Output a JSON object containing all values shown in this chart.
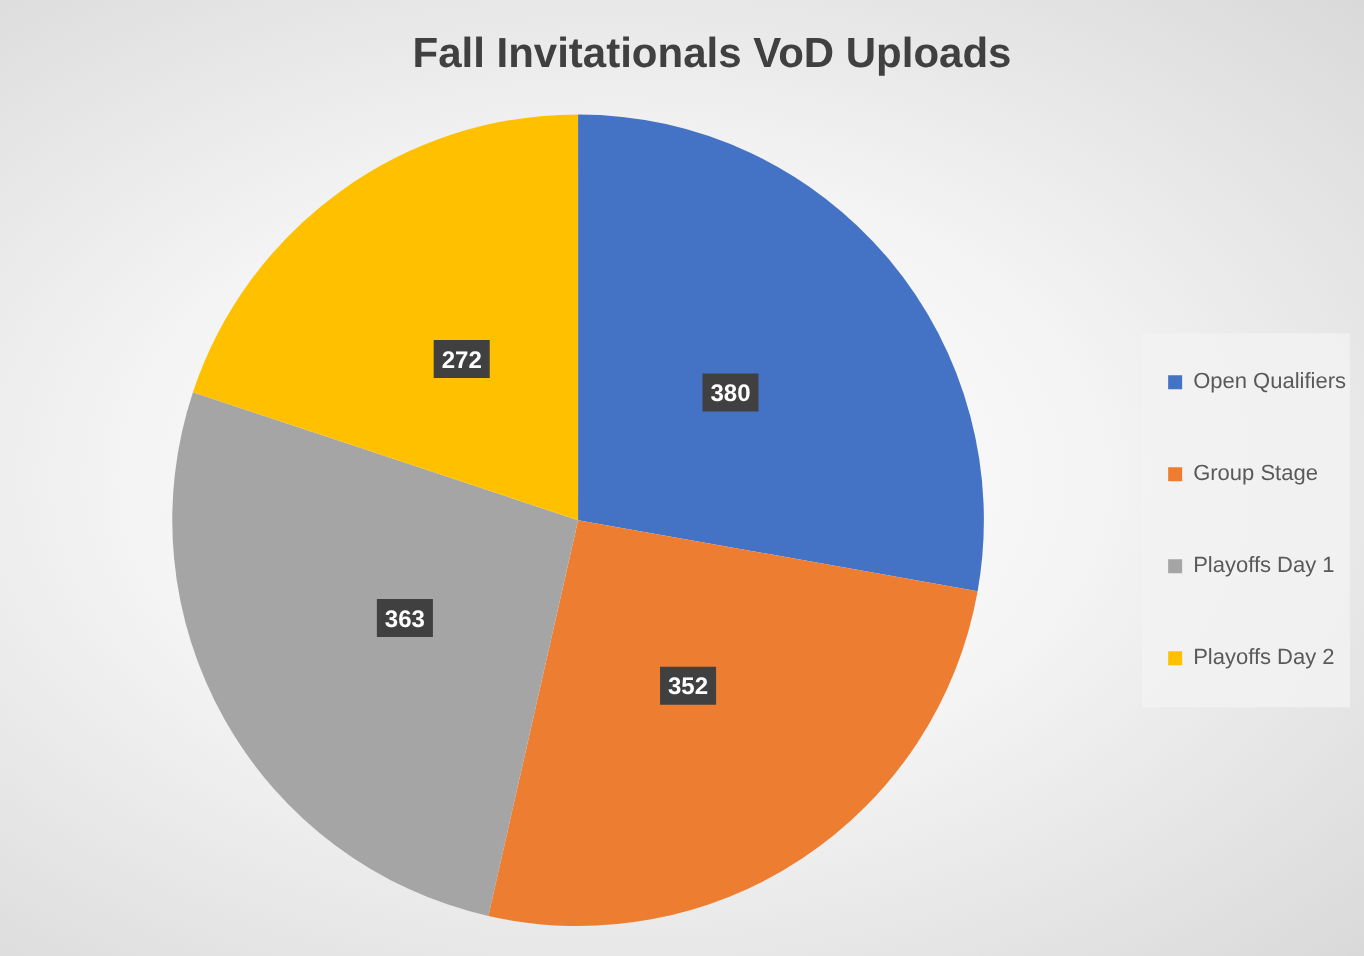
{
  "chart_data": {
    "type": "pie",
    "title": "Fall Invitationals VoD Uploads",
    "categories": [
      "Open Qualifiers",
      "Group Stage",
      "Playoffs Day 1",
      "Playoffs Day 2"
    ],
    "values": [
      380,
      352,
      363,
      272
    ],
    "colors": [
      "#4472c4",
      "#ed7d31",
      "#a5a5a5",
      "#ffc000"
    ],
    "legend": "right",
    "data_labels": true
  }
}
